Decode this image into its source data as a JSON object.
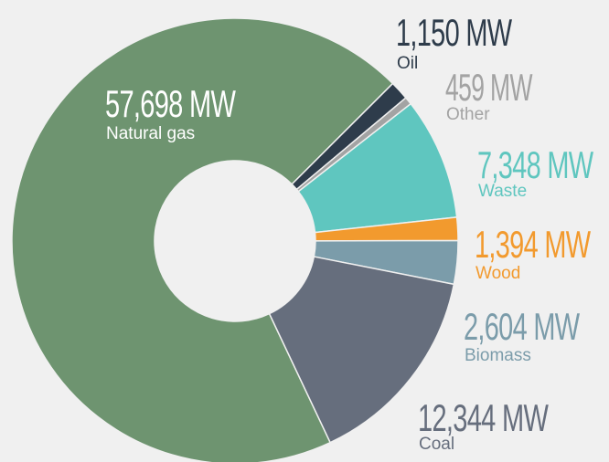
{
  "chart_data": {
    "type": "donut",
    "categories": [
      "Natural gas",
      "Oil",
      "Other",
      "Waste",
      "Wood",
      "Biomass",
      "Coal"
    ],
    "values": [
      57698,
      1150,
      459,
      7348,
      1394,
      2604,
      12344
    ],
    "value_labels": [
      "57,698 MW",
      "1,150 MW",
      "459 MW",
      "7,348 MW",
      "1,394 MW",
      "2,604 MW",
      "12,344 MW"
    ],
    "colors": [
      "#6e9470",
      "#2e3c4b",
      "#a3a3a3",
      "#5fc6bf",
      "#f29a2e",
      "#7b9caa",
      "#666e7d"
    ]
  }
}
